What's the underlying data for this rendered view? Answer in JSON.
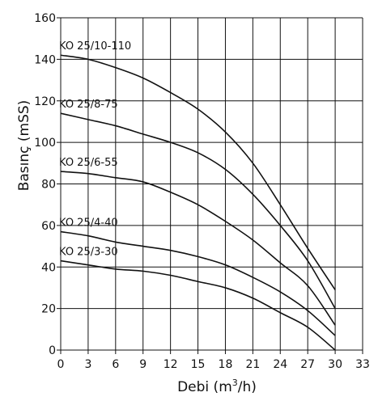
{
  "chart_data": {
    "type": "line",
    "xlabel_prefix": "Debi (m",
    "xlabel_sup": "3",
    "xlabel_suffix": "/h)",
    "ylabel": "Basınç (mSS)",
    "xlim": [
      0,
      33
    ],
    "ylim": [
      0,
      160
    ],
    "xticks": [
      "0",
      "3",
      "6",
      "9",
      "12",
      "15",
      "18",
      "21",
      "24",
      "27",
      "30",
      "33"
    ],
    "yticks": [
      "0",
      "20",
      "40",
      "60",
      "80",
      "100",
      "120",
      "140",
      "160"
    ],
    "grid": true,
    "series": [
      {
        "name": "KO 25/10-110",
        "x": [
          0,
          3,
          6,
          9,
          12,
          15,
          18,
          21,
          24,
          27,
          30
        ],
        "y": [
          142,
          140,
          136,
          131,
          124,
          116,
          105,
          90,
          70,
          49,
          29
        ]
      },
      {
        "name": "KO 25/8-75",
        "x": [
          0,
          3,
          6,
          9,
          12,
          15,
          18,
          21,
          24,
          27,
          30
        ],
        "y": [
          114,
          111,
          108,
          104,
          100,
          95,
          87,
          75,
          60,
          43,
          20
        ]
      },
      {
        "name": "KO 25/6-55",
        "x": [
          0,
          3,
          6,
          9,
          12,
          15,
          18,
          21,
          24,
          27,
          30
        ],
        "y": [
          86,
          85,
          83,
          81,
          76,
          70,
          62,
          53,
          42,
          31,
          12
        ]
      },
      {
        "name": "KO 25/4-40",
        "x": [
          0,
          3,
          6,
          9,
          12,
          15,
          18,
          21,
          24,
          27,
          30
        ],
        "y": [
          57,
          55,
          52,
          50,
          48,
          45,
          41,
          35,
          28,
          19,
          7
        ]
      },
      {
        "name": "KO 25/3-30",
        "x": [
          0,
          3,
          6,
          9,
          12,
          15,
          18,
          21,
          24,
          27,
          30
        ],
        "y": [
          43,
          41,
          39,
          38,
          36,
          33,
          30,
          25,
          18,
          11,
          0
        ]
      }
    ]
  }
}
